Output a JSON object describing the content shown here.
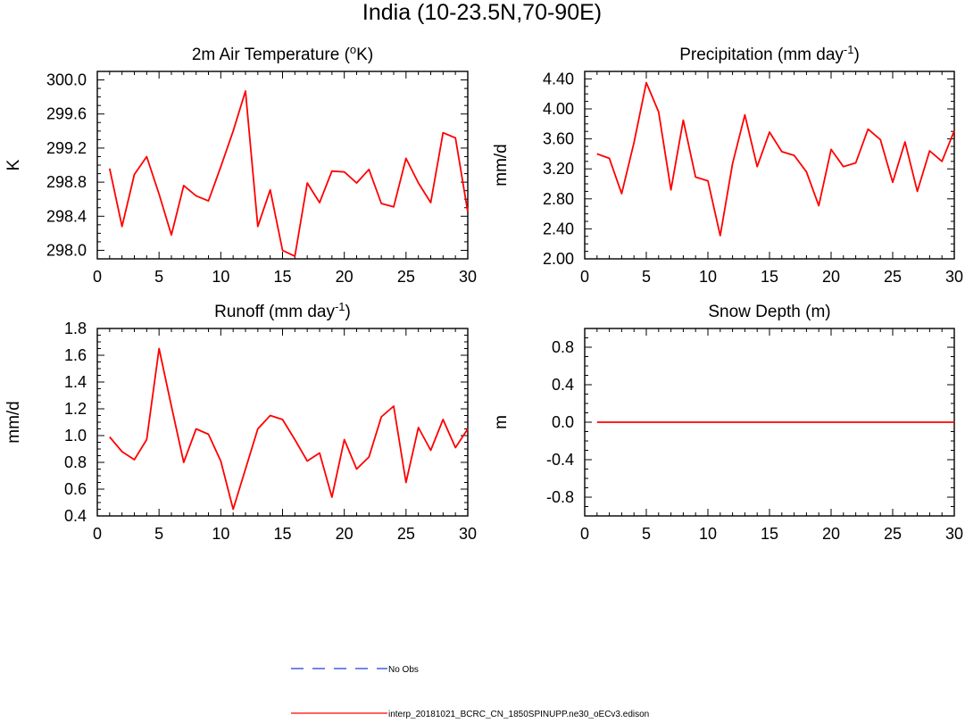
{
  "page_title": "India (10-23.5N,70-90E)",
  "colors": {
    "model": "#ff0000",
    "obs": "#1f3fd6",
    "axis": "#000000"
  },
  "chart_data": [
    {
      "id": "tas",
      "type": "line",
      "title": "2m Air Temperature (°K)",
      "title_main": "2m Air Temperature (",
      "title_sup": "o",
      "title_tail": "K)",
      "ylabel": "K",
      "xlim": [
        0,
        30
      ],
      "ylim": [
        297.9,
        300.1
      ],
      "xticks": [
        0,
        5,
        10,
        15,
        20,
        25,
        30
      ],
      "xtick_labels": [
        "0",
        "5",
        "10",
        "15",
        "20",
        "25",
        "30"
      ],
      "yticks": [
        298.0,
        298.4,
        298.8,
        299.2,
        299.6,
        300.0
      ],
      "ytick_labels": [
        "298.0",
        "298.4",
        "298.8",
        "299.2",
        "299.6",
        "300.0"
      ],
      "yminor": 0.1,
      "x": [
        1,
        2,
        3,
        4,
        5,
        6,
        7,
        8,
        9,
        10,
        11,
        12,
        13,
        14,
        15,
        16,
        17,
        18,
        19,
        20,
        21,
        22,
        23,
        24,
        25,
        26,
        27,
        28,
        29,
        30
      ],
      "values": [
        298.96,
        298.28,
        298.89,
        299.1,
        298.66,
        298.18,
        298.76,
        298.64,
        298.58,
        298.98,
        299.4,
        299.87,
        298.28,
        298.71,
        298.0,
        297.93,
        298.79,
        298.56,
        298.93,
        298.92,
        298.79,
        298.95,
        298.55,
        298.51,
        299.08,
        298.79,
        298.56,
        299.38,
        299.32,
        298.45
      ]
    },
    {
      "id": "prect",
      "type": "line",
      "title": "Precipitation (mm day-1)",
      "title_main": "Precipitation (mm day",
      "title_sup": "-1",
      "title_tail": ")",
      "ylabel": "mm/d",
      "xlim": [
        0,
        30
      ],
      "ylim": [
        2.0,
        4.5
      ],
      "xticks": [
        0,
        5,
        10,
        15,
        20,
        25,
        30
      ],
      "xtick_labels": [
        "0",
        "5",
        "10",
        "15",
        "20",
        "25",
        "30"
      ],
      "yticks": [
        2.0,
        2.4,
        2.8,
        3.2,
        3.6,
        4.0,
        4.4
      ],
      "ytick_labels": [
        "2.00",
        "2.40",
        "2.80",
        "3.20",
        "3.60",
        "4.00",
        "4.40"
      ],
      "yminor": 0.1,
      "x": [
        1,
        2,
        3,
        4,
        5,
        6,
        7,
        8,
        9,
        10,
        11,
        12,
        13,
        14,
        15,
        16,
        17,
        18,
        19,
        20,
        21,
        22,
        23,
        24,
        25,
        26,
        27,
        28,
        29,
        30
      ],
      "values": [
        3.4,
        3.34,
        2.87,
        3.55,
        4.35,
        3.96,
        2.92,
        3.85,
        3.09,
        3.04,
        2.31,
        3.27,
        3.92,
        3.23,
        3.69,
        3.43,
        3.38,
        3.16,
        2.71,
        3.46,
        3.23,
        3.28,
        3.73,
        3.59,
        3.02,
        3.56,
        2.9,
        3.44,
        3.3,
        3.71
      ]
    },
    {
      "id": "runoff",
      "type": "line",
      "title": "Runoff (mm day-1)",
      "title_main": "Runoff (mm day",
      "title_sup": "-1",
      "title_tail": ")",
      "ylabel": "mm/d",
      "xlim": [
        0,
        30
      ],
      "ylim": [
        0.4,
        1.8
      ],
      "xticks": [
        0,
        5,
        10,
        15,
        20,
        25,
        30
      ],
      "xtick_labels": [
        "0",
        "5",
        "10",
        "15",
        "20",
        "25",
        "30"
      ],
      "yticks": [
        0.4,
        0.6,
        0.8,
        1.0,
        1.2,
        1.4,
        1.6,
        1.8
      ],
      "ytick_labels": [
        "0.4",
        "0.6",
        "0.8",
        "1.0",
        "1.2",
        "1.4",
        "1.6",
        "1.8"
      ],
      "yminor": 0.05,
      "x": [
        1,
        2,
        3,
        4,
        5,
        6,
        7,
        8,
        9,
        10,
        11,
        12,
        13,
        14,
        15,
        16,
        17,
        18,
        19,
        20,
        21,
        22,
        23,
        24,
        25,
        26,
        27,
        28,
        29,
        30
      ],
      "values": [
        0.99,
        0.88,
        0.82,
        0.97,
        1.65,
        1.22,
        0.8,
        1.05,
        1.01,
        0.81,
        0.45,
        0.75,
        1.05,
        1.15,
        1.12,
        0.97,
        0.81,
        0.87,
        0.54,
        0.97,
        0.75,
        0.84,
        1.14,
        1.22,
        0.65,
        1.06,
        0.89,
        1.12,
        0.91,
        1.05
      ]
    },
    {
      "id": "snowd",
      "type": "line",
      "title": "Snow Depth (m)",
      "title_main": "Snow Depth (m)",
      "title_sup": "",
      "title_tail": "",
      "ylabel": "m",
      "xlim": [
        0,
        30
      ],
      "ylim": [
        -1.0,
        1.0
      ],
      "xticks": [
        0,
        5,
        10,
        15,
        20,
        25,
        30
      ],
      "xtick_labels": [
        "0",
        "5",
        "10",
        "15",
        "20",
        "25",
        "30"
      ],
      "yticks": [
        -0.8,
        -0.4,
        0.0,
        0.4,
        0.8
      ],
      "ytick_labels": [
        "-0.8",
        "-0.4",
        "0.0",
        "0.4",
        "0.8"
      ],
      "yminor": 0.1,
      "x": [
        1,
        2,
        3,
        4,
        5,
        6,
        7,
        8,
        9,
        10,
        11,
        12,
        13,
        14,
        15,
        16,
        17,
        18,
        19,
        20,
        21,
        22,
        23,
        24,
        25,
        26,
        27,
        28,
        29,
        30
      ],
      "values": [
        0,
        0,
        0,
        0,
        0,
        0,
        0,
        0,
        0,
        0,
        0,
        0,
        0,
        0,
        0,
        0,
        0,
        0,
        0,
        0,
        0,
        0,
        0,
        0,
        0,
        0,
        0,
        0,
        0,
        0
      ]
    }
  ],
  "legend": [
    {
      "label": "No Obs",
      "style": "dashed",
      "color": "#1f3fd6"
    },
    {
      "label": "interp_20181021_BCRC_CN_1850SPINUPP.ne30_oECv3.edison",
      "style": "solid",
      "color": "#ff0000"
    }
  ]
}
